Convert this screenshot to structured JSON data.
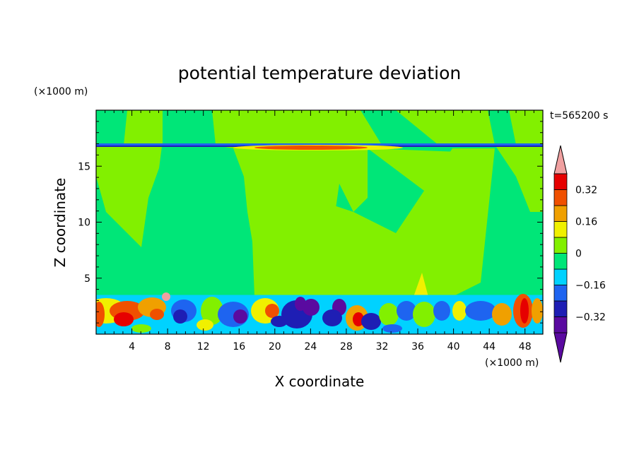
{
  "chart_data": {
    "type": "heatmap",
    "title": "potential temperature deviation",
    "xlabel": "X coordinate",
    "ylabel": "Z coordinate",
    "x_unit": "(×1000 m)",
    "y_unit": "(×1000 m)",
    "time_label": "t=565200 s",
    "xlim": [
      0,
      50
    ],
    "ylim": [
      0,
      20
    ],
    "xticks": [
      4,
      8,
      12,
      16,
      20,
      24,
      28,
      32,
      36,
      40,
      44,
      48
    ],
    "xtick_labels": [
      "4",
      "8",
      "12",
      "16",
      "20",
      "24",
      "28",
      "32",
      "36",
      "40",
      "44",
      "48"
    ],
    "yticks": [
      5,
      10,
      15
    ],
    "ytick_labels": [
      "5",
      "10",
      "15"
    ],
    "colorbar": {
      "levels": [
        -0.4,
        -0.32,
        -0.24,
        -0.16,
        -0.08,
        0,
        0.08,
        0.16,
        0.24,
        0.32,
        0.4
      ],
      "labels": [
        "-0.32",
        "-0.16",
        "0",
        "0.16",
        "0.32"
      ],
      "label_values": [
        -0.32,
        -0.16,
        0,
        0.16,
        0.32
      ],
      "colors": [
        "#5a0aa0",
        "#1e1eb4",
        "#1e64f0",
        "#00d2ff",
        "#00e678",
        "#82f000",
        "#f0f000",
        "#f0a000",
        "#f05000",
        "#e60000",
        "#f0a0a0"
      ],
      "extend": "both"
    },
    "field_description_regions": {
      "upper_layer_bands": [
        {
          "z": 16.8,
          "value": -0.2
        },
        {
          "z": 16.6,
          "value": 0.25
        }
      ],
      "lower_layer_top_z": 3.5
    }
  }
}
